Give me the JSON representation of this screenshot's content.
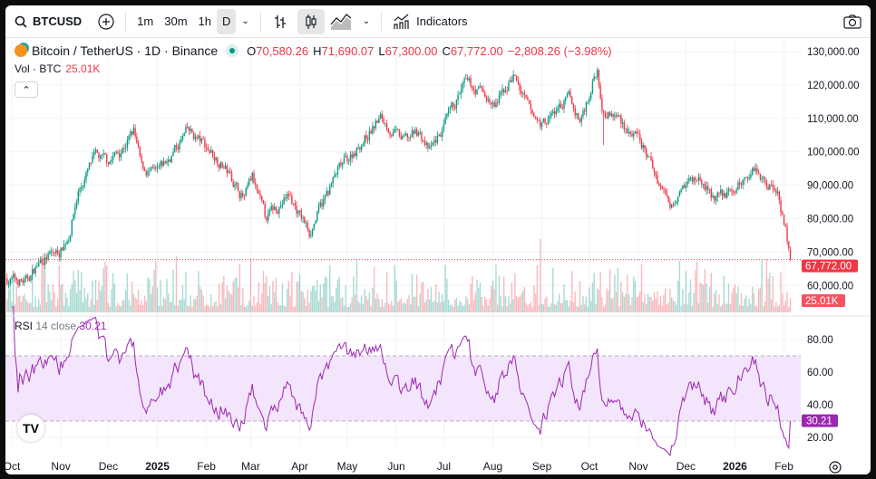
{
  "toolbar": {
    "symbol": "BTCUSD",
    "intervals": [
      "1m",
      "30m",
      "1h",
      "D"
    ],
    "active_interval": "D",
    "indicators_label": "Indicators"
  },
  "legend": {
    "title": "Bitcoin / TetherUS · 1D · Binance",
    "o_label": "O",
    "o": "70,580.26",
    "h_label": "H",
    "h": "71,690.07",
    "l_label": "L",
    "l": "67,300.00",
    "c_label": "C",
    "c": "67,772.00",
    "change": "−2,808.26 (−3.98%)",
    "vol_label": "Vol · BTC",
    "vol": "25.01K"
  },
  "rsi_legend": {
    "name": "RSI",
    "params": "14 close",
    "value": "30.21"
  },
  "colors": {
    "up": "#089981",
    "down": "#f23645",
    "rsi": "#9c27b0",
    "band": "#f3e6fc"
  },
  "chart_data": {
    "type": "candlestick",
    "price_axis": [
      "130,000.00",
      "120,000.00",
      "110,000.00",
      "100,000.00",
      "90,000.00",
      "80,000.00",
      "70,000.00",
      "60,000.00"
    ],
    "price_range": [
      60000,
      130000
    ],
    "last_price": 67772,
    "last_price_label": "67,772.00",
    "last_volume_label": "25.01K",
    "rsi_axis": [
      "80.00",
      "60.00",
      "40.00",
      "20.00"
    ],
    "rsi_bands": [
      30,
      70
    ],
    "last_rsi_label": "30.21",
    "time_axis": [
      [
        "2024-10-01",
        "Oct"
      ],
      [
        "2024-11-01",
        "Nov"
      ],
      [
        "2024-12-01",
        "Dec"
      ],
      [
        "2025-01-01",
        "2025"
      ],
      [
        "2025-02-01",
        "Feb"
      ],
      [
        "2025-03-01",
        "Mar"
      ],
      [
        "2025-04-01",
        "Apr"
      ],
      [
        "2025-05-01",
        "May"
      ],
      [
        "2025-06-01",
        "Jun"
      ],
      [
        "2025-07-01",
        "Jul"
      ],
      [
        "2025-08-01",
        "Aug"
      ],
      [
        "2025-09-01",
        "Sep"
      ],
      [
        "2025-10-01",
        "Oct"
      ],
      [
        "2025-11-01",
        "Nov"
      ],
      [
        "2025-12-01",
        "Dec"
      ],
      [
        "2026-01-01",
        "2026"
      ],
      [
        "2026-02-01",
        "Feb"
      ]
    ],
    "close_anchors": [
      [
        "2024-09-28",
        62000
      ],
      [
        "2024-10-10",
        61000
      ],
      [
        "2024-10-20",
        68000
      ],
      [
        "2024-10-31",
        70000
      ],
      [
        "2024-11-06",
        75000
      ],
      [
        "2024-11-12",
        88000
      ],
      [
        "2024-11-22",
        98000
      ],
      [
        "2024-11-30",
        97000
      ],
      [
        "2024-12-08",
        100000
      ],
      [
        "2024-12-17",
        106000
      ],
      [
        "2024-12-22",
        95000
      ],
      [
        "2024-12-31",
        93000
      ],
      [
        "2025-01-07",
        97000
      ],
      [
        "2025-01-20",
        106000
      ],
      [
        "2025-01-31",
        102000
      ],
      [
        "2025-02-10",
        97000
      ],
      [
        "2025-02-25",
        86000
      ],
      [
        "2025-03-02",
        92000
      ],
      [
        "2025-03-10",
        80000
      ],
      [
        "2025-03-25",
        87000
      ],
      [
        "2025-04-07",
        76000
      ],
      [
        "2025-04-15",
        84000
      ],
      [
        "2025-04-25",
        94000
      ],
      [
        "2025-05-10",
        103000
      ],
      [
        "2025-05-22",
        110000
      ],
      [
        "2025-06-05",
        103000
      ],
      [
        "2025-06-15",
        106000
      ],
      [
        "2025-06-22",
        100000
      ],
      [
        "2025-07-01",
        107000
      ],
      [
        "2025-07-14",
        120000
      ],
      [
        "2025-07-25",
        118000
      ],
      [
        "2025-08-02",
        113000
      ],
      [
        "2025-08-14",
        123000
      ],
      [
        "2025-08-25",
        111000
      ],
      [
        "2025-09-01",
        108000
      ],
      [
        "2025-09-18",
        116000
      ],
      [
        "2025-09-25",
        109000
      ],
      [
        "2025-10-06",
        125000
      ],
      [
        "2025-10-10",
        112000
      ],
      [
        "2025-10-20",
        110000
      ],
      [
        "2025-11-04",
        101000
      ],
      [
        "2025-11-21",
        84000
      ],
      [
        "2025-11-28",
        91000
      ],
      [
        "2025-12-10",
        92000
      ],
      [
        "2025-12-18",
        86000
      ],
      [
        "2025-12-31",
        88000
      ],
      [
        "2026-01-14",
        96000
      ],
      [
        "2026-01-20",
        91000
      ],
      [
        "2026-01-28",
        89000
      ],
      [
        "2026-02-02",
        77000
      ],
      [
        "2026-02-05",
        67772
      ]
    ]
  }
}
